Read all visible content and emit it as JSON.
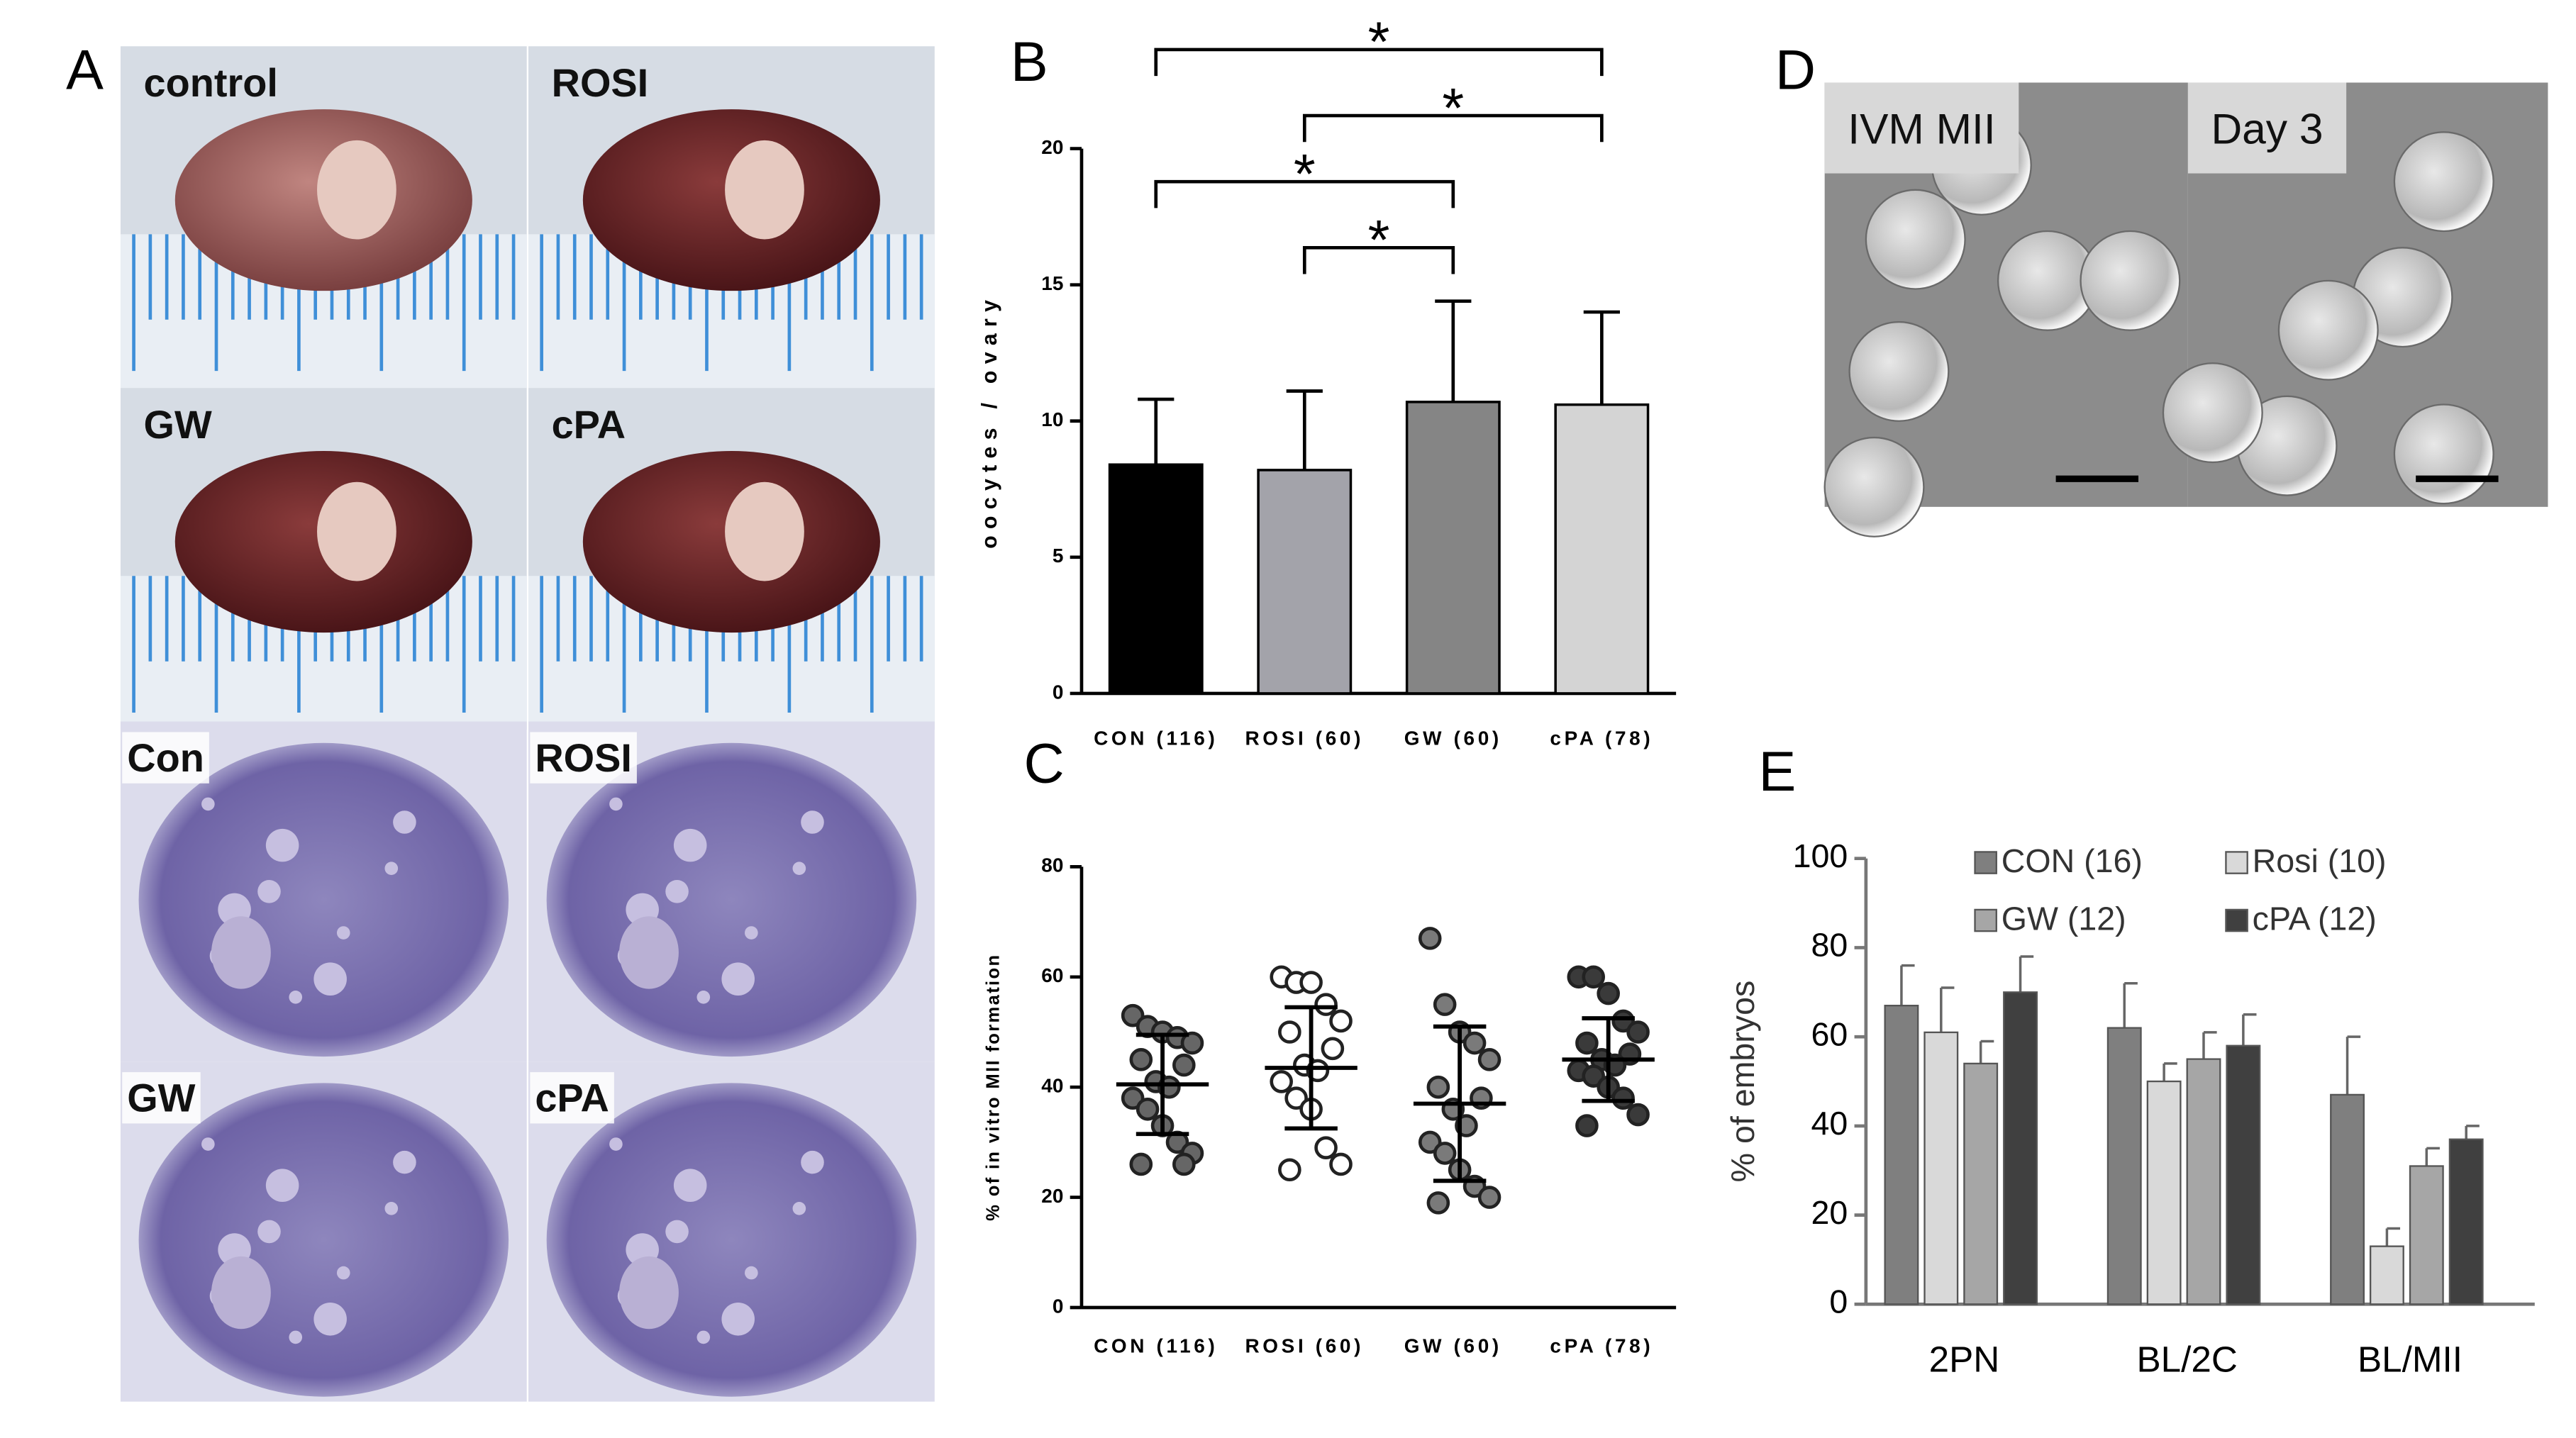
{
  "panels": {
    "A": {
      "letter": "A",
      "labels": [
        "control",
        "ROSI",
        "GW",
        "cPA",
        "Con",
        "ROSI",
        "GW",
        "cPA"
      ]
    },
    "D": {
      "letter": "D",
      "labels": [
        "IVM MII",
        "Day 3"
      ]
    }
  },
  "chart_data": [
    {
      "type": "bar",
      "panel": "B",
      "ylabel": "oocytes / ovary",
      "categories": [
        "CON (116)",
        "ROSI (60)",
        "GW (60)",
        "cPA (78)"
      ],
      "values": [
        8.4,
        8.2,
        10.7,
        10.6
      ],
      "errors": [
        2.4,
        2.9,
        3.7,
        3.4
      ],
      "colors": [
        "#000000",
        "#a3a3aa",
        "#858585",
        "#d4d4d4"
      ],
      "ylim": [
        0,
        20
      ],
      "yticks": [
        0,
        5,
        10,
        15,
        20
      ],
      "brackets": [
        {
          "from": 1,
          "to": 2,
          "label": "*"
        },
        {
          "from": 0,
          "to": 2,
          "label": "*"
        },
        {
          "from": 1,
          "to": 3,
          "label": "*"
        },
        {
          "from": 0,
          "to": 3,
          "label": "*"
        }
      ]
    },
    {
      "type": "scatter",
      "panel": "C",
      "ylabel": "% of in vitro MII formation",
      "categories": [
        "CON (116)",
        "ROSI (60)",
        "GW (60)",
        "cPA (78)"
      ],
      "groups": [
        {
          "color": "#666666",
          "values": [
            53,
            51,
            50,
            49,
            48,
            45,
            44,
            41,
            40,
            38,
            36,
            33,
            30,
            28,
            26,
            26
          ],
          "mean": 40.5,
          "sd": 9
        },
        {
          "color": "#ffffff",
          "values": [
            60,
            59,
            59,
            55,
            52,
            50,
            47,
            44,
            43,
            41,
            38,
            36,
            29,
            26,
            25
          ],
          "mean": 43.5,
          "sd": 11
        },
        {
          "color": "#7a7a7a",
          "values": [
            67,
            55,
            50,
            48,
            45,
            40,
            38,
            36,
            33,
            30,
            28,
            25,
            22,
            20,
            19
          ],
          "mean": 37,
          "sd": 14
        },
        {
          "color": "#3a3a3a",
          "values": [
            60,
            60,
            57,
            52,
            50,
            48,
            46,
            45,
            44,
            43,
            42,
            40,
            38,
            35,
            33
          ],
          "mean": 45,
          "sd": 7.5
        }
      ],
      "ylim": [
        0,
        80
      ],
      "yticks": [
        0,
        20,
        40,
        60,
        80
      ]
    },
    {
      "type": "grouped-bar",
      "panel": "E",
      "ylabel": "% of embryos",
      "categories": [
        "2PN",
        "BL/2C",
        "BL/MII"
      ],
      "series": [
        {
          "name": "CON (16)",
          "color": "#7f7f7f",
          "values": [
            67,
            62,
            47
          ],
          "errors": [
            9,
            10,
            13
          ]
        },
        {
          "name": "Rosi (10)",
          "color": "#d9d9d9",
          "values": [
            61,
            50,
            13
          ],
          "errors": [
            10,
            4,
            4
          ]
        },
        {
          "name": "GW (12)",
          "color": "#a6a6a6",
          "values": [
            54,
            55,
            31
          ],
          "errors": [
            5,
            6,
            4
          ]
        },
        {
          "name": "cPA (12)",
          "color": "#404040",
          "values": [
            70,
            58,
            37
          ],
          "errors": [
            8,
            7,
            3
          ]
        }
      ],
      "ylim": [
        0,
        100
      ],
      "yticks": [
        0,
        20,
        40,
        60,
        80,
        100
      ]
    }
  ]
}
